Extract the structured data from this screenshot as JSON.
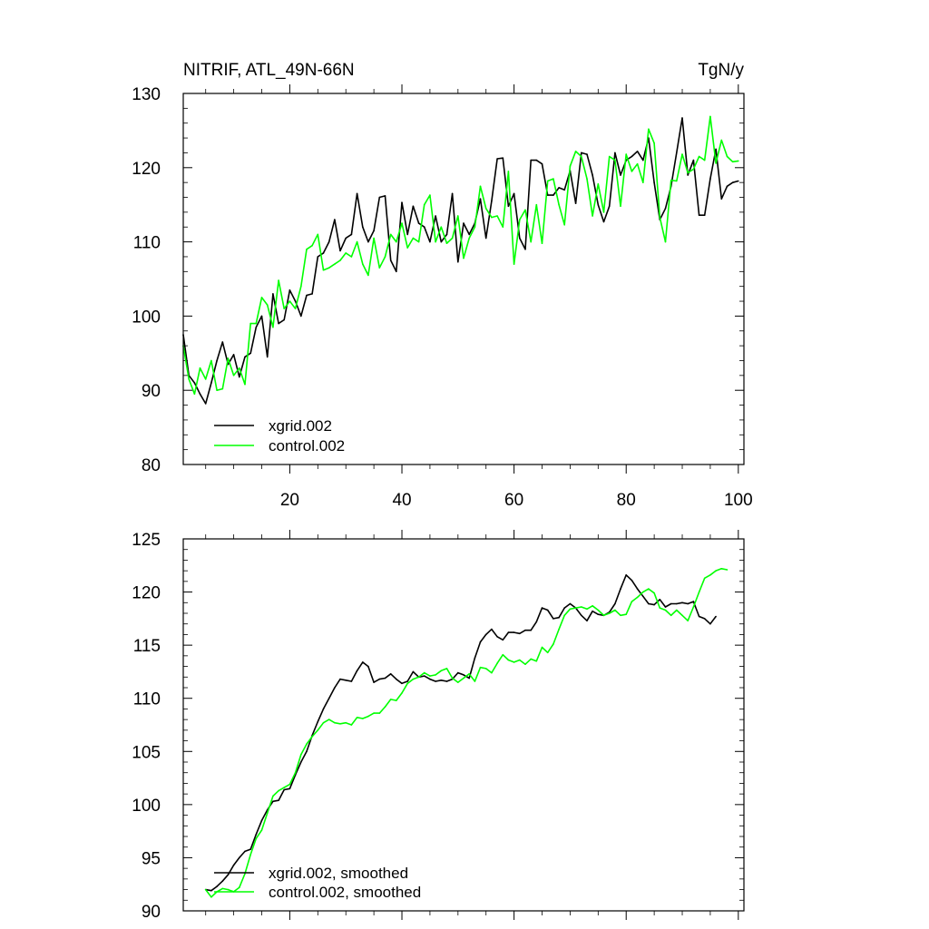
{
  "chart_data": [
    {
      "type": "line",
      "title": "NITRIF, ATL_49N-66N",
      "units": "TgN/y",
      "xlim": [
        1,
        101
      ],
      "ylim": [
        80,
        130
      ],
      "x_ticks": [
        20,
        40,
        60,
        80,
        100
      ],
      "x_tick_labels": [
        "20",
        "40",
        "60",
        "80",
        "100"
      ],
      "y_ticks": [
        80,
        90,
        100,
        110,
        120,
        130
      ],
      "y_tick_labels": [
        "80",
        "90",
        "100",
        "110",
        "120",
        "130"
      ],
      "grid": false,
      "legend_position": "bottom-left",
      "series": [
        {
          "name": "xgrid.002",
          "color": "#000000",
          "x_start": 1,
          "values": [
            97.5,
            92.0,
            91.0,
            89.5,
            88.2,
            91.0,
            94.0,
            96.5,
            93.5,
            94.8,
            91.8,
            94.5,
            95.0,
            98.5,
            100.0,
            94.5,
            103.0,
            99.0,
            99.5,
            103.5,
            102.0,
            100.0,
            102.8,
            103.0,
            108.0,
            108.5,
            110.0,
            113.0,
            108.8,
            110.5,
            111.0,
            116.5,
            112.0,
            110.0,
            111.5,
            116.0,
            116.2,
            107.5,
            106.0,
            115.3,
            111.0,
            114.8,
            112.5,
            112.0,
            110.0,
            113.5,
            110.0,
            111.0,
            116.5,
            107.3,
            112.5,
            111.0,
            112.5,
            115.8,
            110.5,
            115.5,
            121.2,
            121.3,
            114.8,
            116.5,
            110.5,
            109.0,
            121.0,
            121.0,
            120.5,
            116.3,
            116.3,
            117.3,
            117.0,
            119.6,
            115.2,
            122.0,
            121.8,
            119.0,
            115.0,
            112.7,
            114.8,
            122.0,
            119.0,
            121.0,
            121.5,
            122.2,
            121.0,
            124.0,
            118.0,
            113.0,
            114.5,
            117.5,
            122.0,
            126.7,
            119.0,
            121.0,
            113.6,
            113.6,
            118.5,
            122.5,
            115.8,
            117.5,
            118.0,
            118.2
          ]
        },
        {
          "name": "control.002",
          "color": "#00ff00",
          "x_start": 1,
          "values": [
            96.0,
            91.5,
            89.5,
            93.0,
            91.5,
            94.0,
            90.0,
            90.2,
            94.3,
            92.0,
            93.0,
            90.8,
            99.0,
            99.0,
            102.5,
            101.5,
            98.5,
            104.8,
            101.0,
            102.0,
            101.0,
            104.0,
            109.0,
            109.5,
            111.0,
            106.2,
            106.5,
            107.0,
            107.5,
            108.5,
            108.0,
            110.0,
            107.0,
            105.5,
            110.5,
            106.5,
            108.0,
            111.0,
            110.0,
            112.5,
            109.2,
            110.5,
            110.0,
            115.0,
            116.3,
            110.0,
            112.0,
            109.8,
            110.5,
            113.5,
            107.8,
            110.5,
            112.0,
            117.5,
            114.5,
            113.3,
            113.5,
            112.0,
            119.5,
            107.0,
            113.0,
            114.3,
            110.0,
            115.0,
            109.8,
            118.2,
            118.5,
            115.0,
            112.3,
            120.2,
            122.2,
            121.5,
            118.5,
            113.5,
            117.8,
            114.0,
            121.5,
            121.0,
            114.8,
            121.8,
            119.5,
            120.5,
            118.0,
            125.2,
            123.3,
            113.3,
            110.0,
            118.3,
            118.2,
            121.8,
            119.3,
            119.8,
            121.5,
            121.0,
            126.9,
            120.6,
            123.7,
            121.5,
            120.8,
            120.9
          ]
        }
      ]
    },
    {
      "type": "line",
      "xlim": [
        1,
        101
      ],
      "ylim": [
        90,
        125
      ],
      "x_ticks": [
        20,
        40,
        60,
        80,
        100
      ],
      "y_ticks": [
        90,
        95,
        100,
        105,
        110,
        115,
        120,
        125
      ],
      "y_tick_labels": [
        "90",
        "95",
        "100",
        "105",
        "110",
        "115",
        "120",
        "125"
      ],
      "grid": false,
      "legend_position": "bottom-left",
      "series": [
        {
          "name": "xgrid.002, smoothed",
          "color": "#000000",
          "x_start": 5,
          "values": [
            92.0,
            91.9,
            92.3,
            92.8,
            93.4,
            94.3,
            95.0,
            95.6,
            95.8,
            97.2,
            98.5,
            99.5,
            100.3,
            100.4,
            101.4,
            101.5,
            102.8,
            104.0,
            105.0,
            106.5,
            107.8,
            109.0,
            110.0,
            111.0,
            111.8,
            111.7,
            111.6,
            112.6,
            113.4,
            113.0,
            111.5,
            111.8,
            111.9,
            112.3,
            111.8,
            111.4,
            111.6,
            112.5,
            112.0,
            112.1,
            111.8,
            111.6,
            111.7,
            111.6,
            111.8,
            112.4,
            112.2,
            111.9,
            113.8,
            115.3,
            116.0,
            116.5,
            115.8,
            115.5,
            116.2,
            116.2,
            116.1,
            116.4,
            116.4,
            117.2,
            118.5,
            118.3,
            117.5,
            117.6,
            118.5,
            118.9,
            118.5,
            117.8,
            117.3,
            118.2,
            117.9,
            117.8,
            118.1,
            118.9,
            120.3,
            121.6,
            121.1,
            120.3,
            119.6,
            118.9,
            118.8,
            119.3,
            118.6,
            118.9,
            118.9,
            119.0,
            118.9,
            119.1,
            117.7,
            117.5,
            117.0,
            117.7
          ]
        },
        {
          "name": "control.002, smoothed",
          "color": "#00ff00",
          "x_start": 5,
          "values": [
            92.0,
            91.3,
            91.8,
            92.1,
            92.0,
            91.8,
            92.2,
            93.5,
            95.3,
            96.8,
            97.6,
            99.2,
            100.8,
            101.3,
            101.6,
            101.9,
            103.0,
            104.7,
            105.7,
            106.4,
            107.0,
            107.7,
            108.0,
            107.7,
            107.6,
            107.7,
            107.5,
            108.2,
            108.1,
            108.3,
            108.6,
            108.6,
            109.2,
            109.9,
            109.8,
            110.5,
            111.4,
            111.8,
            112.0,
            112.4,
            112.1,
            112.2,
            112.6,
            112.8,
            111.9,
            111.5,
            111.9,
            112.3,
            111.6,
            112.9,
            112.8,
            112.4,
            113.3,
            114.1,
            113.6,
            113.4,
            113.6,
            113.2,
            113.7,
            113.5,
            114.8,
            114.3,
            115.1,
            116.5,
            117.8,
            118.4,
            118.5,
            118.6,
            118.4,
            118.7,
            118.3,
            117.8,
            118.0,
            118.3,
            117.8,
            117.9,
            119.1,
            119.5,
            120.0,
            120.3,
            119.9,
            118.5,
            118.3,
            117.8,
            118.3,
            117.8,
            117.3,
            118.6,
            120.0,
            121.3,
            121.6,
            122.0,
            122.2,
            122.1
          ]
        }
      ]
    }
  ]
}
